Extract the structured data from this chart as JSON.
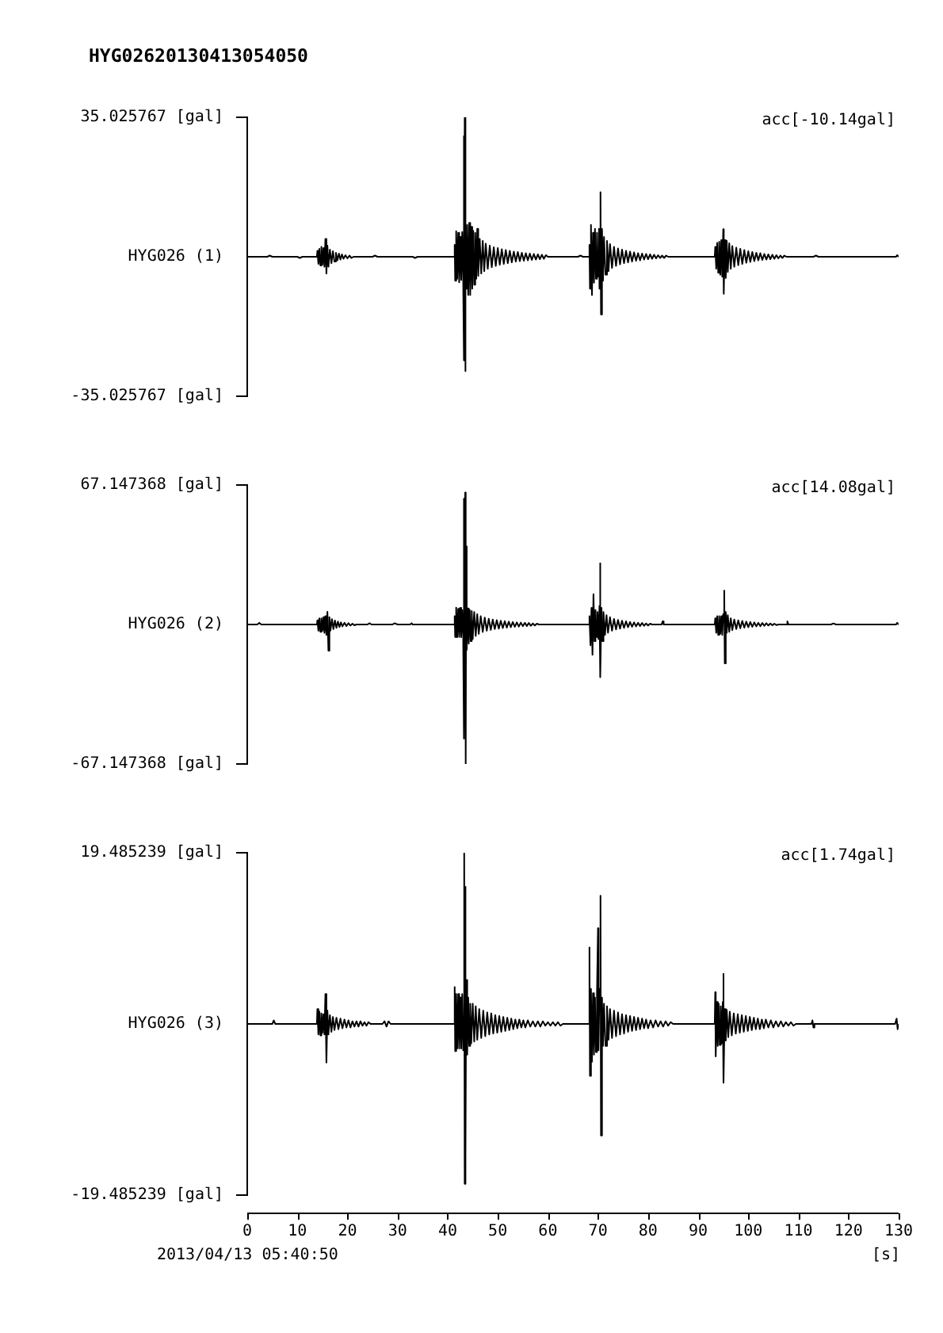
{
  "chart_data": [
    {
      "type": "line",
      "title": "HYG02620130413054050",
      "ylabel": "HYG026 (1)",
      "annotations": [
        "acc[-10.14gal]"
      ],
      "xlim": [
        0,
        130
      ],
      "ylim": [
        -35.025767,
        35.025767
      ],
      "yticks": [
        {
          "value": -35.025767,
          "label": "-35.025767 [gal]"
        },
        {
          "value": 35.025767,
          "label": "35.025767 [gal]"
        }
      ],
      "tick_labels": "y",
      "x": [
        0,
        4,
        4.5,
        5,
        10,
        10.5,
        11,
        13.9,
        14.0,
        14.2,
        14.4,
        14.6,
        14.8,
        15.0,
        15.2,
        15.4,
        15.6,
        15.8,
        16.0,
        16.2,
        16.5,
        16.8,
        17.1,
        17.4,
        17.7,
        18.0,
        18.3,
        18.6,
        18.9,
        19.2,
        19.6,
        20.0,
        20.4,
        20.8,
        21.2,
        25,
        25.5,
        26,
        33,
        33.5,
        34,
        41.3,
        41.4,
        41.5,
        41.7,
        41.9,
        42.1,
        42.3,
        42.5,
        42.7,
        42.9,
        43.1,
        43.2,
        43.3,
        43.4,
        43.5,
        43.6,
        43.7,
        43.9,
        44.1,
        44.3,
        44.5,
        44.7,
        44.9,
        45.1,
        45.3,
        45.5,
        45.7,
        45.9,
        46.1,
        46.4,
        46.7,
        47.0,
        47.3,
        47.6,
        48.0,
        48.4,
        48.8,
        49.2,
        49.6,
        50.0,
        50.4,
        50.8,
        51.2,
        51.6,
        52.0,
        52.4,
        52.8,
        53.2,
        53.6,
        54.0,
        54.4,
        54.8,
        55.2,
        55.6,
        56.0,
        56.4,
        56.8,
        57.2,
        57.6,
        58.0,
        58.4,
        58.8,
        59.2,
        59.6,
        60.0,
        66.0,
        66.5,
        67.0,
        68.2,
        68.3,
        68.4,
        68.6,
        68.8,
        69.0,
        69.2,
        69.4,
        69.6,
        69.8,
        70.0,
        70.2,
        70.3,
        70.5,
        70.6,
        70.8,
        71.0,
        71.2,
        71.5,
        71.8,
        72.1,
        72.4,
        72.8,
        73.2,
        73.6,
        74.0,
        74.4,
        74.8,
        75.2,
        75.6,
        76.0,
        76.4,
        76.8,
        77.2,
        77.6,
        78.0,
        78.4,
        78.8,
        79.2,
        79.6,
        80.0,
        80.4,
        80.8,
        81.2,
        81.6,
        82.0,
        82.4,
        82.8,
        83.2,
        83.6,
        84.0,
        93.3,
        93.4,
        93.6,
        93.8,
        94.0,
        94.2,
        94.4,
        94.6,
        94.8,
        95.0,
        95.1,
        95.3,
        95.5,
        95.7,
        95.9,
        96.2,
        96.5,
        96.8,
        97.2,
        97.6,
        98.0,
        98.4,
        98.8,
        99.2,
        99.6,
        100.0,
        100.4,
        100.8,
        101.2,
        101.6,
        102.0,
        102.4,
        102.8,
        103.2,
        103.6,
        104.0,
        104.4,
        104.8,
        105.2,
        105.6,
        106.0,
        106.4,
        106.8,
        107.2,
        107.6,
        113,
        113.5,
        114,
        129.5,
        129.7,
        130
      ],
      "series": [
        {
          "color": "#000000",
          "values": [
            0,
            0,
            0.3,
            0,
            0,
            -0.3,
            0,
            0,
            1.5,
            -1.8,
            2.0,
            -2.2,
            2.5,
            -2.0,
            2.2,
            -2.5,
            4.5,
            -4.2,
            2.8,
            -2.5,
            1.8,
            -1.6,
            1.4,
            -1.2,
            1.0,
            -0.9,
            0.8,
            -0.7,
            0.6,
            -0.5,
            0.4,
            -0.4,
            0.3,
            -0.3,
            0,
            0,
            0.3,
            0,
            0,
            -0.3,
            0,
            0,
            3.0,
            -6.0,
            6.4,
            -5.5,
            6.0,
            -6.4,
            5.0,
            -5.8,
            6.2,
            -6.0,
            30.3,
            -26.0,
            35.0,
            -28.7,
            9.0,
            -8.0,
            8.0,
            -9.6,
            8.5,
            -9.6,
            7.5,
            -8.0,
            6.5,
            -7.0,
            6.0,
            -5.5,
            7.0,
            -4.8,
            4.5,
            -4.2,
            4.0,
            -3.6,
            3.3,
            -3.0,
            2.8,
            -2.6,
            2.4,
            -2.3,
            2.2,
            -2.0,
            1.9,
            -1.8,
            1.7,
            -1.6,
            1.5,
            -1.4,
            1.3,
            -1.2,
            1.2,
            -1.1,
            1.0,
            -1.0,
            0.9,
            -0.9,
            0.8,
            -0.8,
            0.7,
            -0.7,
            0.6,
            -0.6,
            0.5,
            -0.5,
            0.4,
            0,
            0,
            0.3,
            0,
            0,
            3.0,
            -8.0,
            8.0,
            -9.6,
            6.0,
            -6.5,
            7.0,
            -5.5,
            6.0,
            -5.0,
            7.0,
            -8.0,
            16.2,
            -14.5,
            7.0,
            -6.0,
            5.0,
            -4.5,
            4.0,
            -3.6,
            3.2,
            -2.8,
            2.5,
            -2.3,
            2.1,
            -1.9,
            1.8,
            -1.6,
            1.5,
            -1.4,
            1.3,
            -1.2,
            1.1,
            -1.0,
            0.9,
            -0.9,
            0.8,
            -0.7,
            0.7,
            -0.6,
            0.6,
            -0.5,
            0.5,
            -0.4,
            0.4,
            -0.3,
            0.3,
            -0.3,
            0.3,
            0,
            0,
            2.5,
            -3.0,
            3.5,
            -4.0,
            3.8,
            -4.5,
            4.2,
            -5.0,
            6.9,
            -9.3,
            4.2,
            -5.3,
            4.0,
            -3.8,
            3.4,
            -3.0,
            2.7,
            -2.5,
            2.3,
            -2.1,
            2.0,
            -1.8,
            1.7,
            -1.5,
            1.4,
            -1.3,
            1.2,
            -1.1,
            1.0,
            -0.9,
            0.9,
            -0.8,
            0.7,
            -0.7,
            0.6,
            -0.6,
            0.5,
            -0.5,
            0.4,
            -0.4,
            0.3,
            -0.3,
            0.3,
            0,
            0,
            0.3,
            0,
            0,
            0.4,
            0
          ]
        }
      ]
    },
    {
      "type": "line",
      "ylabel": "HYG026 (2)",
      "annotations": [
        "acc[14.08gal]"
      ],
      "xlim": [
        0,
        130
      ],
      "ylim": [
        -67.147368,
        67.147368
      ],
      "yticks": [
        {
          "value": -67.147368,
          "label": "-67.147368 [gal]"
        },
        {
          "value": 67.147368,
          "label": "67.147368 [gal]"
        }
      ],
      "tick_labels": "y",
      "x": [
        0,
        2,
        2.4,
        2.8,
        13.9,
        14.0,
        14.2,
        14.4,
        14.6,
        14.8,
        15.0,
        15.2,
        15.4,
        15.6,
        15.8,
        16.0,
        16.2,
        16.4,
        16.6,
        16.9,
        17.2,
        17.5,
        17.8,
        18.1,
        18.4,
        18.7,
        19.0,
        19.4,
        19.8,
        20.2,
        20.6,
        21.0,
        21.4,
        21.8,
        24.0,
        24.4,
        24.8,
        29.0,
        29.4,
        30.0,
        32.5,
        32.8,
        33.0,
        41.3,
        41.4,
        41.5,
        41.7,
        41.9,
        42.1,
        42.3,
        42.5,
        42.7,
        42.9,
        43.1,
        43.2,
        43.3,
        43.5,
        43.6,
        43.7,
        43.8,
        44.0,
        44.2,
        44.4,
        44.6,
        44.8,
        45.0,
        45.3,
        45.6,
        45.9,
        46.2,
        46.6,
        47.0,
        47.4,
        47.8,
        48.2,
        48.6,
        49.0,
        49.4,
        49.8,
        50.2,
        50.6,
        51.0,
        51.4,
        51.8,
        52.2,
        52.6,
        53.0,
        53.4,
        53.8,
        54.2,
        54.6,
        55.0,
        55.4,
        55.8,
        56.2,
        56.6,
        57.0,
        57.4,
        57.8,
        58.2,
        68.2,
        68.3,
        68.5,
        68.7,
        68.9,
        69.1,
        69.3,
        69.5,
        69.7,
        69.9,
        70.1,
        70.3,
        70.4,
        70.5,
        70.7,
        70.9,
        71.1,
        71.4,
        71.7,
        72.0,
        72.4,
        72.8,
        73.2,
        73.6,
        74.0,
        74.4,
        74.8,
        75.2,
        75.6,
        76.0,
        76.4,
        76.8,
        77.2,
        77.6,
        78.0,
        78.4,
        78.8,
        79.2,
        79.6,
        80.0,
        80.4,
        80.8,
        82.7,
        82.9,
        83.1,
        93.3,
        93.4,
        93.6,
        93.8,
        94.0,
        94.2,
        94.4,
        94.6,
        94.8,
        95.0,
        95.2,
        95.3,
        95.5,
        95.7,
        95.9,
        96.2,
        96.5,
        96.8,
        97.2,
        97.6,
        98.0,
        98.4,
        98.8,
        99.2,
        99.6,
        100.0,
        100.4,
        100.8,
        101.2,
        101.6,
        102.0,
        102.4,
        102.8,
        103.2,
        103.6,
        104.0,
        104.4,
        104.8,
        105.2,
        105.6,
        106.0,
        107.6,
        107.8,
        108.0,
        116.5,
        117,
        117.5,
        129.5,
        129.7,
        130
      ],
      "series": [
        {
          "color": "#000000",
          "values": [
            0,
            0,
            0.8,
            0,
            0,
            2.0,
            -3.0,
            3.0,
            -3.5,
            3.0,
            -3.0,
            3.5,
            -4.0,
            4.0,
            -5.0,
            6.1,
            -12.6,
            3.5,
            -3.0,
            2.6,
            -2.2,
            1.9,
            -1.6,
            1.4,
            -1.2,
            1.0,
            -0.9,
            0.8,
            -0.7,
            0.6,
            -0.5,
            0.4,
            -0.4,
            0,
            0,
            0.6,
            0,
            0,
            0.6,
            0,
            0,
            0.6,
            0,
            0,
            4.0,
            -6.0,
            8.1,
            -6.1,
            7.5,
            -6.0,
            8.0,
            -6.1,
            7.0,
            -6.0,
            60.6,
            -54.9,
            63.5,
            -67.1,
            37.6,
            -12.2,
            7.7,
            -9.2,
            7.0,
            -8.0,
            6.5,
            -7.0,
            6.0,
            -5.5,
            5.0,
            -4.5,
            4.0,
            -3.6,
            3.3,
            -3.0,
            2.8,
            -2.6,
            2.4,
            -2.2,
            2.1,
            -2.0,
            1.8,
            -1.7,
            1.6,
            -1.5,
            1.4,
            -1.3,
            1.2,
            -1.1,
            1.0,
            -1.0,
            0.9,
            -0.8,
            0.8,
            -0.7,
            0.7,
            -0.6,
            0.5,
            -0.5,
            0.4,
            0,
            0,
            4.0,
            -10.0,
            8.0,
            -14.6,
            14.6,
            -8.0,
            7.0,
            -6.0,
            6.0,
            -7.0,
            9.0,
            29.5,
            -25.4,
            8.0,
            -8.0,
            6.0,
            -5.0,
            4.5,
            -4.0,
            3.5,
            -3.0,
            2.7,
            -2.4,
            2.2,
            -2.0,
            1.8,
            -1.6,
            1.5,
            -1.3,
            1.2,
            -1.1,
            1.0,
            -0.9,
            0.8,
            -0.7,
            0.7,
            -0.6,
            0.5,
            -0.5,
            0.4,
            0,
            0,
            1.5,
            0,
            0,
            3.0,
            -4.0,
            4.0,
            -5.0,
            4.0,
            -4.5,
            4.0,
            -5.0,
            5.0,
            16.3,
            -18.7,
            6.0,
            -4.0,
            4.5,
            -3.5,
            3.0,
            -2.7,
            2.4,
            -2.2,
            2.0,
            -1.8,
            1.7,
            -1.5,
            1.4,
            -1.3,
            1.2,
            -1.1,
            1.0,
            -0.9,
            0.8,
            -0.8,
            0.7,
            -0.6,
            0.6,
            -0.5,
            0.5,
            -0.4,
            0.4,
            -0.3,
            0,
            0,
            1.5,
            0,
            0,
            0.5,
            0,
            0,
            0.8,
            0
          ]
        }
      ]
    },
    {
      "type": "line",
      "ylabel": "HYG026 (3)",
      "xlabel": "[s]",
      "annotations": [
        "acc[1.74gal]",
        "2013/04/13 05:40:50"
      ],
      "xlim": [
        0,
        130
      ],
      "xticks": [
        0,
        10,
        20,
        30,
        40,
        50,
        60,
        70,
        80,
        90,
        100,
        110,
        120,
        130
      ],
      "ylim": [
        -19.485239,
        19.485239
      ],
      "yticks": [
        {
          "value": -19.485239,
          "label": "-19.485239 [gal]"
        },
        {
          "value": 19.485239,
          "label": "19.485239 [gal]"
        }
      ],
      "x": [
        0,
        5.0,
        5.3,
        5.6,
        13.9,
        14.0,
        14.2,
        14.4,
        14.6,
        14.8,
        15.0,
        15.2,
        15.4,
        15.6,
        15.8,
        16.0,
        16.2,
        16.5,
        16.8,
        17.1,
        17.4,
        17.8,
        18.2,
        18.6,
        19.0,
        19.4,
        19.8,
        20.2,
        20.6,
        21.0,
        21.4,
        21.8,
        22.2,
        22.6,
        23.0,
        23.4,
        23.8,
        24.2,
        24.6,
        27.0,
        27.4,
        27.8,
        28.2,
        28.6,
        41.3,
        41.4,
        41.5,
        41.7,
        41.9,
        42.1,
        42.3,
        42.5,
        42.7,
        42.9,
        43.1,
        43.3,
        43.4,
        43.5,
        43.6,
        43.7,
        43.9,
        44.1,
        44.3,
        44.5,
        44.7,
        45.0,
        45.3,
        45.6,
        45.9,
        46.3,
        46.7,
        47.1,
        47.5,
        47.9,
        48.3,
        48.7,
        49.1,
        49.5,
        49.9,
        50.3,
        50.7,
        51.1,
        51.5,
        51.9,
        52.3,
        52.7,
        53.1,
        53.5,
        53.9,
        54.3,
        54.7,
        55.1,
        55.5,
        56.0,
        56.5,
        57.0,
        57.5,
        58.0,
        58.5,
        59.0,
        59.5,
        60.0,
        60.5,
        61.0,
        61.5,
        62.0,
        62.5,
        63.0,
        68.2,
        68.3,
        68.4,
        68.6,
        68.8,
        69.0,
        69.2,
        69.4,
        69.6,
        69.8,
        70.0,
        70.1,
        70.3,
        70.5,
        70.6,
        70.8,
        71.0,
        71.2,
        71.5,
        71.8,
        72.1,
        72.4,
        72.8,
        73.2,
        73.6,
        74.0,
        74.4,
        74.8,
        75.2,
        75.6,
        76.0,
        76.4,
        76.8,
        77.2,
        77.6,
        78.0,
        78.4,
        78.8,
        79.2,
        79.6,
        80.0,
        80.5,
        81.0,
        81.5,
        82.0,
        82.5,
        83.0,
        83.5,
        84.0,
        84.5,
        85.0,
        93.3,
        93.4,
        93.5,
        93.7,
        93.9,
        94.1,
        94.3,
        94.5,
        94.7,
        94.9,
        95.0,
        95.1,
        95.3,
        95.5,
        95.7,
        96.0,
        96.3,
        96.7,
        97.1,
        97.5,
        97.9,
        98.3,
        98.7,
        99.1,
        99.5,
        99.9,
        100.3,
        100.7,
        101.1,
        101.5,
        101.9,
        102.3,
        102.7,
        103.1,
        103.5,
        104.0,
        104.5,
        105.0,
        105.5,
        106.0,
        106.5,
        107.0,
        107.5,
        108.0,
        108.5,
        109.0,
        109.5,
        112.6,
        112.8,
        113.0,
        113.2,
        129.3,
        129.6,
        129.8,
        130
      ],
      "series": [
        {
          "color": "#000000",
          "values": [
            0,
            0,
            0.4,
            0,
            0,
            1.7,
            -1.2,
            1.4,
            -1.3,
            1.2,
            -1.0,
            1.1,
            -1.2,
            3.4,
            -4.4,
            1.5,
            -1.2,
            1.0,
            -0.9,
            0.8,
            -0.7,
            0.7,
            -0.6,
            0.6,
            -0.5,
            0.5,
            -0.4,
            0.4,
            -0.4,
            0.3,
            -0.3,
            0.3,
            -0.3,
            0.3,
            -0.2,
            0.2,
            -0.2,
            0.2,
            0,
            0,
            0.3,
            -0.3,
            0.3,
            0,
            0,
            4.2,
            -3.1,
            3.4,
            -2.8,
            3.4,
            -2.8,
            3.0,
            -2.8,
            3.4,
            -3.0,
            19.4,
            -18.2,
            15.6,
            -15.3,
            5.0,
            -3.5,
            3.0,
            -2.5,
            2.3,
            -2.2,
            2.3,
            -2.0,
            2.0,
            -1.8,
            1.7,
            -1.6,
            1.5,
            -1.4,
            1.3,
            -1.2,
            1.2,
            -1.1,
            1.0,
            -1.0,
            0.9,
            -0.9,
            0.8,
            -0.8,
            0.7,
            -0.7,
            0.6,
            -0.6,
            0.5,
            -0.5,
            0.5,
            -0.4,
            0.4,
            -0.4,
            0.4,
            -0.3,
            0.3,
            -0.3,
            0.3,
            -0.3,
            0.3,
            -0.2,
            0.2,
            -0.2,
            0.2,
            -0.2,
            0.2,
            -0.2,
            0,
            0,
            8.7,
            -5.9,
            4.0,
            -4.3,
            3.5,
            -3.5,
            3.0,
            -3.2,
            3.5,
            10.9,
            -3.0,
            4.0,
            14.6,
            -12.7,
            3.0,
            -2.5,
            2.3,
            -2.5,
            2.0,
            -1.8,
            1.7,
            -1.6,
            1.5,
            -1.4,
            1.3,
            -1.2,
            1.1,
            -1.1,
            1.0,
            -0.9,
            0.9,
            -0.8,
            0.8,
            -0.7,
            0.7,
            -0.6,
            0.6,
            -0.5,
            0.5,
            -0.5,
            0.4,
            -0.4,
            0.4,
            -0.3,
            0.3,
            -0.3,
            0.3,
            -0.2,
            0.2,
            0,
            0,
            3.6,
            -3.7,
            2.5,
            -2.5,
            2.3,
            -2.4,
            2.0,
            -2.2,
            2.5,
            5.7,
            -6.7,
            1.7,
            -1.9,
            1.6,
            -1.5,
            1.4,
            -1.3,
            1.2,
            -1.1,
            1.1,
            -1.0,
            1.0,
            -0.9,
            0.9,
            -0.8,
            0.8,
            -0.7,
            0.7,
            -0.6,
            0.6,
            -0.6,
            0.5,
            -0.5,
            0.5,
            -0.4,
            0.4,
            -0.4,
            0.3,
            -0.3,
            0.3,
            -0.3,
            0.2,
            -0.2,
            0.2,
            -0.2,
            0,
            0,
            0.4,
            -0.4,
            0,
            0,
            0.6,
            -0.6,
            0
          ]
        }
      ]
    }
  ]
}
